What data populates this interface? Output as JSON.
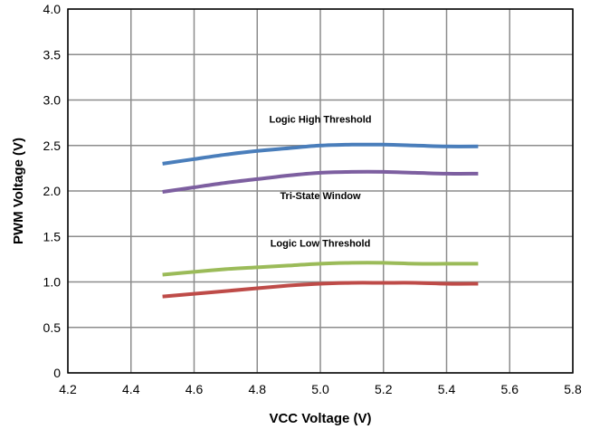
{
  "chart_data": {
    "type": "line",
    "title": "",
    "xlabel": "VCC Voltage (V)",
    "ylabel": "PWM Voltage (V)",
    "xlim": [
      4.2,
      5.8
    ],
    "ylim": [
      0,
      4.0
    ],
    "x_ticks": [
      4.2,
      4.4,
      4.6,
      4.8,
      5.0,
      5.2,
      5.4,
      5.6,
      5.8
    ],
    "x_tick_labels": [
      "4.2",
      "4.4",
      "4.6",
      "4.8",
      "5.0",
      "5.2",
      "5.4",
      "5.6",
      "5.8"
    ],
    "y_ticks": [
      0,
      0.5,
      1.0,
      1.5,
      2.0,
      2.5,
      3.0,
      3.5,
      4.0
    ],
    "y_tick_labels": [
      "0",
      "0.5",
      "1.0",
      "1.5",
      "2.0",
      "2.5",
      "3.0",
      "3.5",
      "4.0"
    ],
    "grid": true,
    "legend": "none",
    "series": [
      {
        "color": "#4a7ebb",
        "x": [
          4.5,
          4.6,
          4.7,
          4.8,
          4.9,
          5.0,
          5.1,
          5.2,
          5.3,
          5.4,
          5.5
        ],
        "y": [
          2.3,
          2.35,
          2.4,
          2.44,
          2.47,
          2.5,
          2.51,
          2.51,
          2.5,
          2.49,
          2.49
        ]
      },
      {
        "color": "#7d5fa0",
        "x": [
          4.5,
          4.6,
          4.7,
          4.8,
          4.9,
          5.0,
          5.1,
          5.2,
          5.3,
          5.4,
          5.5
        ],
        "y": [
          1.99,
          2.04,
          2.09,
          2.13,
          2.17,
          2.2,
          2.21,
          2.21,
          2.2,
          2.19,
          2.19
        ]
      },
      {
        "color": "#9bbb59",
        "x": [
          4.5,
          4.6,
          4.7,
          4.8,
          4.9,
          5.0,
          5.1,
          5.2,
          5.3,
          5.4,
          5.5
        ],
        "y": [
          1.08,
          1.11,
          1.14,
          1.16,
          1.18,
          1.2,
          1.21,
          1.21,
          1.2,
          1.2,
          1.2
        ]
      },
      {
        "color": "#be4b48",
        "x": [
          4.5,
          4.6,
          4.7,
          4.8,
          4.9,
          5.0,
          5.1,
          5.2,
          5.3,
          5.4,
          5.5
        ],
        "y": [
          0.84,
          0.87,
          0.9,
          0.93,
          0.96,
          0.98,
          0.99,
          0.99,
          0.99,
          0.98,
          0.98
        ]
      }
    ],
    "annotations": [
      {
        "text": "Logic High Threshold",
        "x": 5.0,
        "y": 2.75
      },
      {
        "text": "Tri-State Window",
        "x": 5.0,
        "y": 1.91
      },
      {
        "text": "Logic Low Threshold",
        "x": 5.0,
        "y": 1.39
      }
    ]
  }
}
